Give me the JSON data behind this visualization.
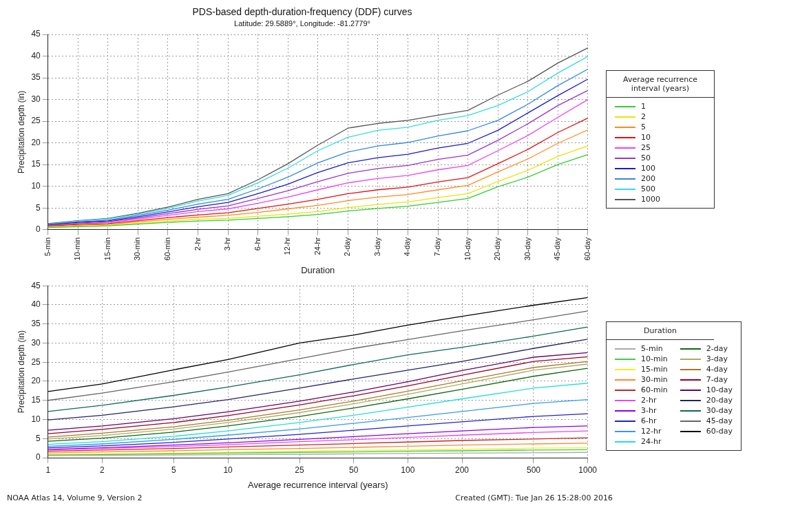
{
  "chart_data": [
    {
      "type": "line",
      "title": "PDS-based depth-duration-frequency (DDF) curves",
      "subtitle": "Latitude: 29.5889°, Longitude: -81.2779°",
      "xlabel": "Duration",
      "ylabel": "Precipitation depth (in)",
      "legend_title": "Average recurrence interval (years)",
      "legend": "right",
      "grid": true,
      "marker": "none",
      "line_style": "solid",
      "categories": [
        "5-min",
        "10-min",
        "15-min",
        "30-min",
        "60-min",
        "2-hr",
        "3-hr",
        "6-hr",
        "12-hr",
        "24-hr",
        "2-day",
        "3-day",
        "4-day",
        "7-day",
        "10-day",
        "20-day",
        "30-day",
        "45-day",
        "60-day"
      ],
      "ylim": [
        0,
        45
      ],
      "yticks": [
        0,
        5,
        10,
        15,
        20,
        25,
        30,
        35,
        40,
        45
      ],
      "series": [
        {
          "name": "1",
          "color": "#33cc33",
          "values": [
            0.5,
            0.7,
            0.9,
            1.3,
            1.7,
            2.0,
            2.2,
            2.6,
            3.0,
            3.5,
            4.3,
            4.9,
            5.4,
            6.3,
            7.2,
            9.9,
            12.1,
            15.0,
            17.3
          ]
        },
        {
          "name": "2",
          "color": "#e6e600",
          "values": [
            0.6,
            0.8,
            1.0,
            1.5,
            2.0,
            2.4,
            2.6,
            3.1,
            3.6,
            4.2,
            5.1,
            5.8,
            6.4,
            7.4,
            8.3,
            11.1,
            13.7,
            16.9,
            19.3
          ]
        },
        {
          "name": "5",
          "color": "#ff8c1a",
          "values": [
            0.7,
            1.0,
            1.2,
            1.8,
            2.4,
            2.9,
            3.3,
            4.0,
            4.8,
            5.6,
            6.7,
            7.5,
            8.1,
            9.2,
            10.2,
            13.3,
            16.3,
            19.9,
            23.0
          ]
        },
        {
          "name": "10",
          "color": "#e01010",
          "values": [
            0.8,
            1.2,
            1.4,
            2.1,
            2.8,
            3.4,
            3.9,
            4.9,
            5.9,
            7.0,
            8.3,
            9.2,
            9.8,
            11.0,
            12.0,
            15.2,
            18.5,
            22.4,
            25.7
          ]
        },
        {
          "name": "25",
          "color": "#ee44ee",
          "values": [
            0.9,
            1.4,
            1.7,
            2.4,
            3.3,
            4.2,
            4.8,
            6.1,
            7.5,
            9.2,
            10.8,
            11.8,
            12.5,
            13.8,
            14.8,
            18.2,
            21.7,
            25.9,
            30.0
          ]
        },
        {
          "name": "50",
          "color": "#9933cc",
          "values": [
            1.0,
            1.5,
            1.9,
            2.7,
            3.7,
            4.7,
            5.5,
            7.2,
            9.0,
            11.1,
            13.0,
            14.1,
            14.8,
            16.2,
            17.2,
            20.6,
            24.4,
            28.6,
            32.1
          ]
        },
        {
          "name": "100",
          "color": "#1a1acc",
          "values": [
            1.1,
            1.7,
            2.0,
            3.0,
            4.1,
            5.3,
            6.3,
            8.3,
            10.5,
            13.2,
            15.4,
            16.6,
            17.4,
            18.8,
            19.9,
            22.9,
            26.9,
            30.9,
            34.7
          ]
        },
        {
          "name": "200",
          "color": "#3388dd",
          "values": [
            1.2,
            1.8,
            2.2,
            3.3,
            4.5,
            5.9,
            7.0,
            9.4,
            12.1,
            15.4,
            17.9,
            19.3,
            20.1,
            21.6,
            22.8,
            25.2,
            28.9,
            33.2,
            37.0
          ]
        },
        {
          "name": "500",
          "color": "#33dddd",
          "values": [
            1.3,
            2.0,
            2.5,
            3.6,
            4.9,
            6.6,
            7.9,
            10.8,
            14.2,
            18.2,
            21.3,
            22.9,
            23.6,
            25.2,
            26.3,
            28.6,
            31.8,
            36.1,
            39.9
          ]
        },
        {
          "name": "1000",
          "color": "#555555",
          "values": [
            1.4,
            2.1,
            2.6,
            3.8,
            5.2,
            7.0,
            8.3,
            11.5,
            15.2,
            19.5,
            23.4,
            24.5,
            25.2,
            26.4,
            27.5,
            31.0,
            34.2,
            38.4,
            41.9
          ]
        }
      ]
    },
    {
      "type": "line",
      "xlabel": "Average recurrence interval (years)",
      "ylabel": "Precipitation depth (in)",
      "legend_title": "Duration",
      "legend": "right",
      "grid": true,
      "log": "x",
      "marker": "none",
      "line_style": "solid",
      "x": [
        1,
        2,
        5,
        10,
        25,
        50,
        100,
        200,
        500,
        1000
      ],
      "xlim": [
        1,
        1000
      ],
      "xticks": [
        1,
        2,
        5,
        10,
        25,
        50,
        100,
        200,
        500,
        1000
      ],
      "ylim": [
        0,
        45
      ],
      "yticks": [
        0,
        5,
        10,
        15,
        20,
        25,
        30,
        35,
        40,
        45
      ],
      "annotations": [
        "NOAA Atlas 14, Volume 9, Version 2",
        "Created (GMT): Tue Jan 26 15:28:00 2016"
      ],
      "series": [
        {
          "name": "5-min",
          "color": "#aaaaaa",
          "values": [
            0.5,
            0.6,
            0.7,
            0.8,
            0.9,
            1.0,
            1.1,
            1.2,
            1.3,
            1.4
          ]
        },
        {
          "name": "10-min",
          "color": "#44cc44",
          "values": [
            0.7,
            0.8,
            1.0,
            1.2,
            1.4,
            1.5,
            1.7,
            1.8,
            2.0,
            2.1
          ]
        },
        {
          "name": "15-min",
          "color": "#eeee22",
          "values": [
            0.9,
            1.0,
            1.2,
            1.4,
            1.7,
            1.9,
            2.0,
            2.2,
            2.5,
            2.6
          ]
        },
        {
          "name": "30-min",
          "color": "#ff8833",
          "values": [
            1.3,
            1.5,
            1.8,
            2.1,
            2.4,
            2.7,
            3.0,
            3.3,
            3.6,
            3.8
          ]
        },
        {
          "name": "60-min",
          "color": "#cc2222",
          "values": [
            1.7,
            2.0,
            2.4,
            2.8,
            3.3,
            3.7,
            4.1,
            4.5,
            4.9,
            5.2
          ]
        },
        {
          "name": "2-hr",
          "color": "#ee44ee",
          "values": [
            2.0,
            2.4,
            2.9,
            3.4,
            4.2,
            4.7,
            5.3,
            5.9,
            6.6,
            7.0
          ]
        },
        {
          "name": "3-hr",
          "color": "#8800ee",
          "values": [
            2.2,
            2.6,
            3.3,
            3.9,
            4.8,
            5.5,
            6.3,
            7.0,
            7.9,
            8.3
          ]
        },
        {
          "name": "6-hr",
          "color": "#2222cc",
          "values": [
            2.6,
            3.1,
            4.0,
            4.9,
            6.1,
            7.2,
            8.3,
            9.4,
            10.8,
            11.5
          ]
        },
        {
          "name": "12-hr",
          "color": "#3399ee",
          "values": [
            3.0,
            3.6,
            4.8,
            5.9,
            7.5,
            9.0,
            10.5,
            12.1,
            14.2,
            15.2
          ]
        },
        {
          "name": "24-hr",
          "color": "#22dddd",
          "values": [
            3.5,
            4.2,
            5.6,
            7.0,
            9.2,
            11.1,
            13.2,
            15.4,
            18.2,
            19.5
          ]
        },
        {
          "name": "2-day",
          "color": "#116611",
          "values": [
            4.3,
            5.1,
            6.7,
            8.3,
            10.8,
            13.0,
            15.4,
            17.9,
            21.3,
            23.4
          ]
        },
        {
          "name": "3-day",
          "color": "#aaaa66",
          "values": [
            4.9,
            5.8,
            7.5,
            9.2,
            11.8,
            14.1,
            16.6,
            19.3,
            22.9,
            24.5
          ]
        },
        {
          "name": "4-day",
          "color": "#aa7722",
          "values": [
            5.4,
            6.4,
            8.1,
            9.8,
            12.5,
            14.8,
            17.4,
            20.1,
            23.6,
            25.2
          ]
        },
        {
          "name": "7-day",
          "color": "#990022",
          "values": [
            6.3,
            7.4,
            9.2,
            11.0,
            13.8,
            16.2,
            18.8,
            21.6,
            25.2,
            26.4
          ]
        },
        {
          "name": "10-day",
          "color": "#660066",
          "values": [
            7.2,
            8.3,
            10.2,
            12.0,
            14.8,
            17.2,
            19.9,
            22.8,
            26.3,
            27.5
          ]
        },
        {
          "name": "20-day",
          "color": "#222266",
          "values": [
            9.9,
            11.1,
            13.3,
            15.2,
            18.2,
            20.6,
            22.9,
            25.2,
            28.6,
            31.0
          ]
        },
        {
          "name": "30-day",
          "color": "#116655",
          "values": [
            12.1,
            13.7,
            16.3,
            18.5,
            21.7,
            24.4,
            26.9,
            28.9,
            31.8,
            34.2
          ]
        },
        {
          "name": "45-day",
          "color": "#666666",
          "values": [
            15.0,
            16.9,
            19.9,
            22.4,
            25.9,
            28.6,
            30.9,
            33.2,
            36.1,
            38.4
          ]
        },
        {
          "name": "60-day",
          "color": "#000000",
          "values": [
            17.3,
            19.3,
            23.0,
            25.7,
            30.0,
            32.1,
            34.7,
            37.0,
            39.9,
            41.9
          ]
        }
      ]
    }
  ]
}
